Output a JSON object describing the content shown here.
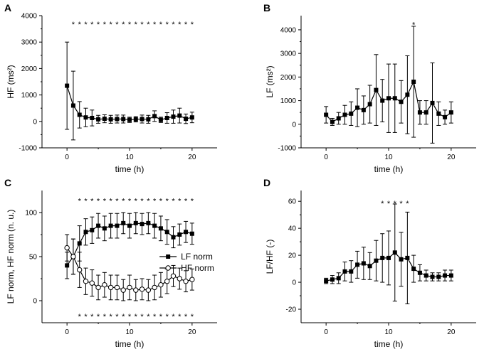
{
  "chart_data": [
    {
      "type": "line",
      "panel": "A",
      "xlabel": "time (h)",
      "ylabel": "HF (ms²)",
      "xlim": [
        -4,
        24
      ],
      "ylim": [
        -1000,
        4000
      ],
      "xticks": [
        0,
        10,
        20
      ],
      "yticks": [
        -1000,
        0,
        1000,
        2000,
        3000,
        4000
      ],
      "series": [
        {
          "name": "HF",
          "marker": "filled-square",
          "x": [
            0,
            1,
            2,
            3,
            4,
            5,
            6,
            7,
            8,
            9,
            10,
            11,
            12,
            13,
            14,
            15,
            16,
            17,
            18,
            19,
            20
          ],
          "values": [
            1350,
            600,
            250,
            150,
            130,
            80,
            100,
            80,
            90,
            90,
            60,
            80,
            90,
            80,
            200,
            60,
            130,
            180,
            220,
            100,
            150
          ],
          "errors": [
            1650,
            1300,
            500,
            350,
            300,
            150,
            150,
            150,
            150,
            150,
            100,
            100,
            150,
            150,
            200,
            100,
            200,
            250,
            280,
            180,
            200
          ]
        }
      ],
      "significance_row": {
        "text": "*",
        "x": [
          1,
          2,
          3,
          4,
          5,
          6,
          7,
          8,
          9,
          10,
          11,
          12,
          13,
          14,
          15,
          16,
          17,
          18,
          19,
          20
        ],
        "y": 3700
      }
    },
    {
      "type": "line",
      "panel": "B",
      "xlabel": "time (h)",
      "ylabel": "LF (ms²)",
      "xlim": [
        -4,
        24
      ],
      "ylim": [
        -1000,
        4600
      ],
      "xticks": [
        0,
        10,
        20
      ],
      "yticks": [
        -1000,
        0,
        1000,
        2000,
        3000,
        4000
      ],
      "series": [
        {
          "name": "LF",
          "marker": "filled-square",
          "x": [
            0,
            1,
            2,
            3,
            4,
            5,
            6,
            7,
            8,
            9,
            10,
            11,
            12,
            13,
            14,
            15,
            16,
            17,
            18,
            19,
            20
          ],
          "values": [
            400,
            100,
            250,
            400,
            450,
            700,
            600,
            850,
            1450,
            1000,
            1100,
            1100,
            950,
            1250,
            1800,
            500,
            500,
            900,
            450,
            300,
            500
          ],
          "errors": [
            350,
            150,
            250,
            400,
            500,
            800,
            600,
            800,
            1500,
            900,
            1450,
            1450,
            900,
            1650,
            2350,
            500,
            500,
            1700,
            500,
            300,
            450
          ]
        }
      ],
      "significance_row": {
        "text": "*",
        "x": [
          14
        ],
        "y": 4250
      }
    },
    {
      "type": "line",
      "panel": "C",
      "xlabel": "time (h)",
      "ylabel": "LF norm, HF norm (n. u.)",
      "xlim": [
        -4,
        24
      ],
      "ylim": [
        -25,
        125
      ],
      "xticks": [
        0,
        10,
        20
      ],
      "yticks": [
        0,
        50,
        100
      ],
      "legend": {
        "position": "center-right",
        "entries": [
          "LF norm",
          "HF norm"
        ]
      },
      "series": [
        {
          "name": "LF norm",
          "marker": "filled-square",
          "x": [
            0,
            1,
            2,
            3,
            4,
            5,
            6,
            7,
            8,
            9,
            10,
            11,
            12,
            13,
            14,
            15,
            16,
            17,
            18,
            19,
            20
          ],
          "values": [
            40,
            50,
            65,
            78,
            80,
            85,
            82,
            85,
            85,
            88,
            85,
            88,
            87,
            88,
            85,
            82,
            78,
            72,
            75,
            78,
            76
          ],
          "errors": [
            15,
            20,
            20,
            15,
            15,
            14,
            14,
            14,
            14,
            12,
            14,
            12,
            12,
            12,
            14,
            14,
            14,
            12,
            12,
            12,
            12
          ]
        },
        {
          "name": "HF norm",
          "marker": "open-circle",
          "x": [
            0,
            1,
            2,
            3,
            4,
            5,
            6,
            7,
            8,
            9,
            10,
            11,
            12,
            13,
            14,
            15,
            16,
            17,
            18,
            19,
            20
          ],
          "values": [
            60,
            50,
            35,
            22,
            20,
            15,
            18,
            15,
            15,
            12,
            15,
            12,
            13,
            12,
            15,
            18,
            22,
            28,
            25,
            22,
            24
          ],
          "errors": [
            15,
            20,
            20,
            15,
            15,
            14,
            14,
            14,
            14,
            12,
            14,
            12,
            12,
            12,
            14,
            14,
            14,
            12,
            12,
            12,
            12
          ]
        }
      ],
      "significance_rows": [
        {
          "text": "*",
          "x": [
            2,
            3,
            4,
            5,
            6,
            7,
            8,
            9,
            10,
            11,
            12,
            13,
            14,
            15,
            16,
            17,
            18,
            19,
            20
          ],
          "y": 114
        },
        {
          "text": "*",
          "x": [
            2,
            3,
            4,
            5,
            6,
            7,
            8,
            9,
            10,
            11,
            12,
            13,
            14,
            15,
            16,
            17,
            18,
            19,
            20
          ],
          "y": -17
        }
      ]
    },
    {
      "type": "line",
      "panel": "D",
      "xlabel": "time (h)",
      "ylabel": "LF/HF (-)",
      "xlim": [
        -4,
        24
      ],
      "ylim": [
        -30,
        68
      ],
      "xticks": [
        0,
        10,
        20
      ],
      "yticks": [
        -20,
        0,
        20,
        40,
        60
      ],
      "series": [
        {
          "name": "LF/HF",
          "marker": "filled-square",
          "x": [
            0,
            1,
            2,
            3,
            4,
            5,
            6,
            7,
            8,
            9,
            10,
            11,
            12,
            13,
            14,
            15,
            16,
            17,
            18,
            19,
            20
          ],
          "values": [
            1,
            2,
            3,
            8,
            8,
            13,
            14,
            12,
            16,
            18,
            18,
            22,
            17,
            18,
            10,
            7,
            5,
            4,
            4,
            5,
            5
          ],
          "errors": [
            2,
            3,
            4,
            7,
            8,
            10,
            12,
            10,
            15,
            18,
            20,
            36,
            20,
            34,
            10,
            6,
            4,
            3,
            3,
            4,
            4
          ]
        }
      ],
      "significance_row": {
        "text": "*",
        "x": [
          9,
          10,
          11,
          12,
          13
        ],
        "y": 59
      }
    }
  ]
}
